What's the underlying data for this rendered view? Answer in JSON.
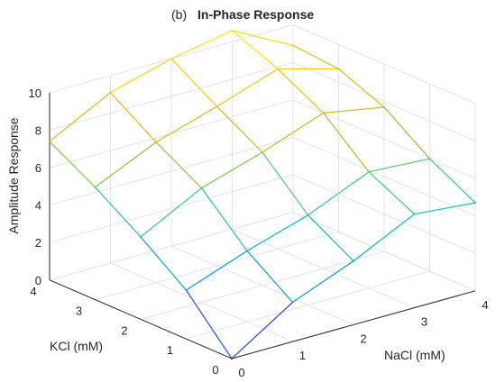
{
  "chart_data": {
    "type": "surface",
    "title_prefix": "(b)",
    "title": "In-Phase Response",
    "xlabel": "NaCl (mM)",
    "ylabel": "KCl (mM)",
    "zlabel": "Amplitude Response",
    "x_ticks": [
      "0",
      "1",
      "2",
      "3",
      "4"
    ],
    "y_ticks": [
      "0",
      "1",
      "2",
      "3",
      "4"
    ],
    "z_ticks": [
      "0",
      "2",
      "4",
      "6",
      "8",
      "10"
    ],
    "xlim": [
      0,
      4
    ],
    "ylim": [
      0,
      4
    ],
    "zlim": [
      0,
      10
    ],
    "grid": true,
    "colormap": "parula",
    "colormap_colors": [
      "#3d26a8",
      "#2f5ee8",
      "#1f97d9",
      "#1ebbc0",
      "#4fc98f",
      "#a6c73a",
      "#e6ba2a",
      "#f9e51f"
    ],
    "x": [
      0,
      1,
      2,
      3,
      4
    ],
    "y": [
      0,
      1,
      2,
      3,
      4
    ],
    "z": [
      [
        0.0,
        2.1,
        3.4,
        5.0,
        4.7
      ],
      [
        2.6,
        3.8,
        4.8,
        6.2,
        6.0
      ],
      [
        4.4,
        6.1,
        7.1,
        8.3,
        7.7
      ],
      [
        6.0,
        7.5,
        8.5,
        9.6,
        8.7
      ],
      [
        7.4,
        9.1,
        10.0,
        10.6,
        8.9
      ]
    ]
  }
}
